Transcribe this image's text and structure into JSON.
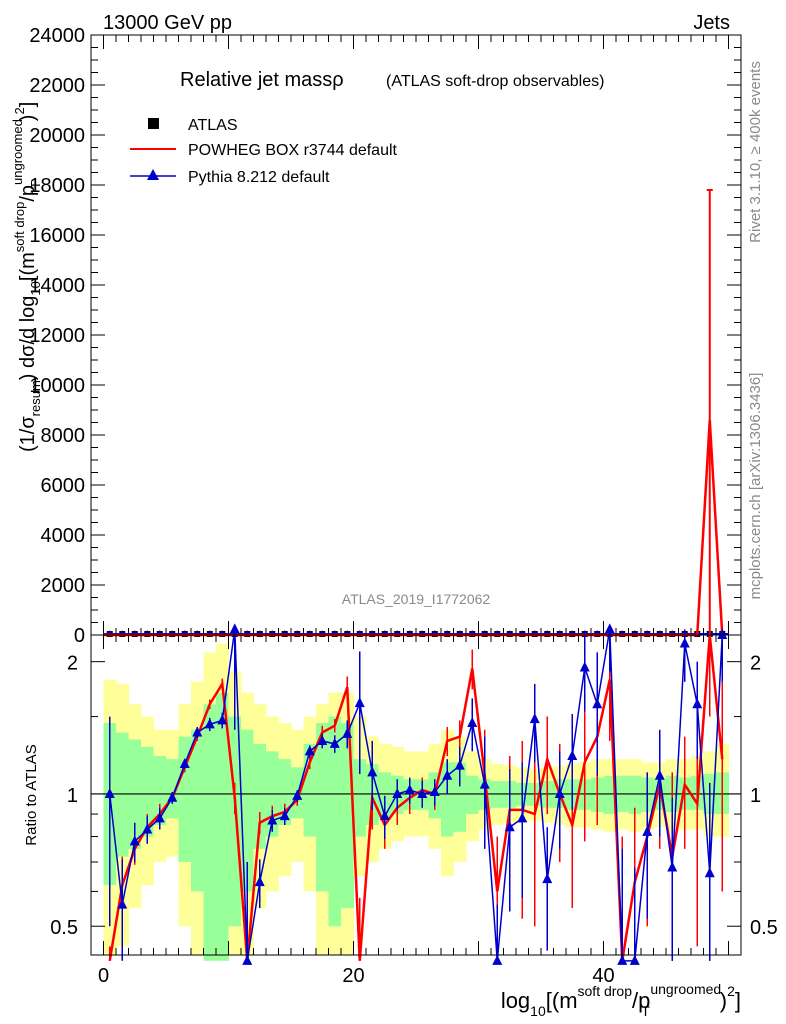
{
  "header": {
    "left": "13000 GeV pp",
    "right": "Jets"
  },
  "side_labels": {
    "rivet": "Rivet 3.1.10, ≥ 400k events",
    "mcplots": "mcplots.cern.ch [arXiv:1306.3436]"
  },
  "colors": {
    "atlas": "#000000",
    "powheg": "#ff0000",
    "pythia": "#0000cc",
    "band_inner": "#99ff99",
    "band_outer": "#ffff99"
  },
  "chart_data": [
    {
      "type": "line",
      "title": "Relative jet massρ",
      "subtitle": "(ATLAS soft-drop observables)",
      "watermark": "ATLAS_2019_I1772062",
      "ylabel_main": "(1/σ",
      "ylabel_sub": "resum",
      "ylabel_rest": ") dσ/d log",
      "ylabel_rest_sub": "10",
      "ylabel_tail": "[(m",
      "ylabel_sup1": "soft drop",
      "ylabel_tail2": "/p",
      "ylabel_sup2": "ungroomed",
      "ylabel_sub2": "T",
      "ylabel_end": ")",
      "ylabel_sup3": "2",
      "ylabel_close": "]",
      "ylim": [
        0,
        24000
      ],
      "xlim": [
        -1,
        51
      ],
      "yticks": [
        "0",
        "2000",
        "4000",
        "6000",
        "8000",
        "10000",
        "12000",
        "14000",
        "16000",
        "18000",
        "20000",
        "22000",
        "24000"
      ],
      "legend_position": "top-left",
      "legend": [
        {
          "name": "ATLAS",
          "marker": "square"
        },
        {
          "name": "POWHEG BOX r3744 default",
          "marker": "line"
        },
        {
          "name": "Pythia 8.212 default",
          "marker": "triangle"
        }
      ],
      "series": [
        {
          "name": "ATLAS",
          "note": "all values near 0 on this scale"
        },
        {
          "name": "POWHEG BOX r3744 default",
          "x": [
            46.5,
            47.5,
            48.5,
            49.5
          ],
          "y": [
            0,
            0,
            8600,
            0
          ],
          "err_up": [
            0,
            0,
            9200,
            0
          ]
        },
        {
          "name": "Pythia 8.212 default",
          "note": "all values near 0 on this scale"
        }
      ]
    },
    {
      "type": "line",
      "ylabel": "Ratio to ATLAS",
      "xlabel_pre": "log",
      "xlabel_sub": "10",
      "xlabel_mid": "[(m",
      "xlabel_sup1": "soft drop",
      "xlabel_mid2": "/p",
      "xlabel_sup2": "ungroomed",
      "xlabel_sub2": "T",
      "xlabel_end": ")",
      "xlabel_sup3": "2",
      "xlabel_close": "]",
      "yscale": "log",
      "ylim": [
        0.43,
        2.3
      ],
      "yticks": [
        "0.5",
        "1",
        "2"
      ],
      "xlim": [
        -1,
        51
      ],
      "xticks": [
        "0",
        "20",
        "40"
      ],
      "x": [
        0.5,
        1.5,
        2.5,
        3.5,
        4.5,
        5.5,
        6.5,
        7.5,
        8.5,
        9.5,
        10.5,
        11.5,
        12.5,
        13.5,
        14.5,
        15.5,
        16.5,
        17.5,
        18.5,
        19.5,
        20.5,
        21.5,
        22.5,
        23.5,
        24.5,
        25.5,
        26.5,
        27.5,
        28.5,
        29.5,
        30.5,
        31.5,
        32.5,
        33.5,
        34.5,
        35.5,
        36.5,
        37.5,
        38.5,
        39.5,
        40.5,
        41.5,
        42.5,
        43.5,
        44.5,
        45.5,
        46.5,
        47.5,
        48.5,
        49.5
      ],
      "band_inner": [
        [
          0.62,
          1.45
        ],
        [
          0.72,
          1.38
        ],
        [
          0.75,
          1.33
        ],
        [
          0.8,
          1.28
        ],
        [
          0.85,
          1.22
        ],
        [
          0.88,
          1.2
        ],
        [
          0.7,
          1.35
        ],
        [
          0.6,
          1.4
        ],
        [
          0.4,
          1.6
        ],
        [
          0.3,
          1.7
        ],
        [
          0.5,
          1.5
        ],
        [
          0.6,
          1.4
        ],
        [
          0.75,
          1.3
        ],
        [
          0.8,
          1.25
        ],
        [
          0.85,
          1.2
        ],
        [
          0.88,
          1.15
        ],
        [
          0.8,
          1.3
        ],
        [
          0.6,
          1.45
        ],
        [
          0.5,
          1.5
        ],
        [
          0.55,
          1.45
        ],
        [
          0.8,
          1.2
        ],
        [
          0.85,
          1.17
        ],
        [
          0.88,
          1.12
        ],
        [
          0.9,
          1.1
        ],
        [
          0.92,
          1.08
        ],
        [
          0.92,
          1.08
        ],
        [
          0.88,
          1.12
        ],
        [
          0.8,
          1.18
        ],
        [
          0.82,
          1.18
        ],
        [
          0.9,
          1.1
        ],
        [
          0.92,
          1.08
        ],
        [
          0.93,
          1.07
        ],
        [
          0.93,
          1.07
        ],
        [
          0.94,
          1.06
        ],
        [
          0.94,
          1.06
        ],
        [
          0.93,
          1.07
        ],
        [
          0.93,
          1.08
        ],
        [
          0.92,
          1.08
        ],
        [
          0.92,
          1.08
        ],
        [
          0.91,
          1.09
        ],
        [
          0.9,
          1.1
        ],
        [
          0.91,
          1.1
        ],
        [
          0.9,
          1.1
        ],
        [
          0.91,
          1.09
        ],
        [
          0.92,
          1.08
        ],
        [
          0.91,
          1.1
        ],
        [
          0.92,
          1.09
        ],
        [
          0.92,
          1.1
        ],
        [
          0.9,
          1.11
        ],
        [
          0.9,
          1.12
        ]
      ],
      "band_outer": [
        [
          0.43,
          1.82
        ],
        [
          0.45,
          1.78
        ],
        [
          0.55,
          1.6
        ],
        [
          0.62,
          1.5
        ],
        [
          0.7,
          1.4
        ],
        [
          0.72,
          1.4
        ],
        [
          0.5,
          1.6
        ],
        [
          0.43,
          1.8
        ],
        [
          0.43,
          2.1
        ],
        [
          0.43,
          2.2
        ],
        [
          0.43,
          1.9
        ],
        [
          0.43,
          1.7
        ],
        [
          0.55,
          1.6
        ],
        [
          0.6,
          1.5
        ],
        [
          0.65,
          1.45
        ],
        [
          0.7,
          1.4
        ],
        [
          0.6,
          1.5
        ],
        [
          0.43,
          1.6
        ],
        [
          0.43,
          1.7
        ],
        [
          0.43,
          1.7
        ],
        [
          0.65,
          1.5
        ],
        [
          0.7,
          1.35
        ],
        [
          0.75,
          1.3
        ],
        [
          0.78,
          1.28
        ],
        [
          0.8,
          1.25
        ],
        [
          0.8,
          1.25
        ],
        [
          0.75,
          1.3
        ],
        [
          0.65,
          1.4
        ],
        [
          0.7,
          1.35
        ],
        [
          0.78,
          1.25
        ],
        [
          0.83,
          1.2
        ],
        [
          0.85,
          1.17
        ],
        [
          0.86,
          1.16
        ],
        [
          0.86,
          1.15
        ],
        [
          0.87,
          1.14
        ],
        [
          0.86,
          1.15
        ],
        [
          0.85,
          1.16
        ],
        [
          0.84,
          1.17
        ],
        [
          0.84,
          1.18
        ],
        [
          0.83,
          1.2
        ],
        [
          0.82,
          1.2
        ],
        [
          0.83,
          1.2
        ],
        [
          0.82,
          1.2
        ],
        [
          0.83,
          1.18
        ],
        [
          0.84,
          1.18
        ],
        [
          0.82,
          1.2
        ],
        [
          0.83,
          1.2
        ],
        [
          0.83,
          1.22
        ],
        [
          0.8,
          1.25
        ],
        [
          0.8,
          1.3
        ]
      ],
      "powheg": {
        "y": [
          0.4,
          0.62,
          0.75,
          0.84,
          0.9,
          0.98,
          1.15,
          1.35,
          1.6,
          1.78,
          0.98,
          0.4,
          0.86,
          0.89,
          0.91,
          0.97,
          1.18,
          1.38,
          1.43,
          1.75,
          0.38,
          0.98,
          0.85,
          0.93,
          0.98,
          1.02,
          1.0,
          1.32,
          1.35,
          1.93,
          1.1,
          0.6,
          0.92,
          0.92,
          0.9,
          1.2,
          1.0,
          0.85,
          1.18,
          1.35,
          1.82,
          0.4,
          0.63,
          0.8,
          1.05,
          0.72,
          1.05,
          0.95,
          2.3,
          1.2
        ],
        "err": [
          0.05,
          0.1,
          0.06,
          0.06,
          0.05,
          0.03,
          0.03,
          0.03,
          0.04,
          0.05,
          0.08,
          0.1,
          0.05,
          0.05,
          0.04,
          0.03,
          0.04,
          0.05,
          0.05,
          0.1,
          0.2,
          0.15,
          0.1,
          0.08,
          0.08,
          0.07,
          0.08,
          0.1,
          0.12,
          0.2,
          0.3,
          0.2,
          0.3,
          0.4,
          0.4,
          0.3,
          0.3,
          0.3,
          0.4,
          0.5,
          0.5,
          0.4,
          0.3,
          0.3,
          0.3,
          0.4,
          0.3,
          0.5,
          0.8,
          0.6
        ]
      },
      "pythia": {
        "y": [
          1.0,
          0.56,
          0.78,
          0.83,
          0.88,
          0.98,
          1.17,
          1.38,
          1.44,
          1.47,
          2.4,
          0.4,
          0.63,
          0.87,
          0.89,
          0.99,
          1.25,
          1.32,
          1.3,
          1.37,
          1.61,
          1.12,
          0.89,
          1.0,
          1.02,
          1.0,
          1.01,
          1.1,
          1.16,
          1.45,
          1.05,
          0.36,
          0.84,
          0.88,
          1.48,
          0.64,
          1.0,
          1.22,
          1.94,
          1.6,
          2.5,
          0.35,
          0.38,
          0.82,
          1.1,
          0.68,
          2.2,
          1.6,
          0.66,
          2.3
        ],
        "err": [
          0.5,
          0.15,
          0.08,
          0.06,
          0.05,
          0.03,
          0.03,
          0.04,
          0.05,
          0.06,
          1.0,
          0.3,
          0.08,
          0.05,
          0.04,
          0.03,
          0.04,
          0.05,
          0.06,
          0.1,
          0.5,
          0.2,
          0.1,
          0.08,
          0.07,
          0.07,
          0.07,
          0.1,
          0.12,
          0.2,
          0.3,
          0.2,
          0.3,
          0.3,
          0.3,
          0.2,
          0.25,
          0.3,
          0.4,
          0.5,
          0.6,
          0.4,
          0.3,
          0.3,
          0.3,
          0.3,
          0.4,
          0.4,
          0.4,
          0.5
        ]
      }
    }
  ]
}
